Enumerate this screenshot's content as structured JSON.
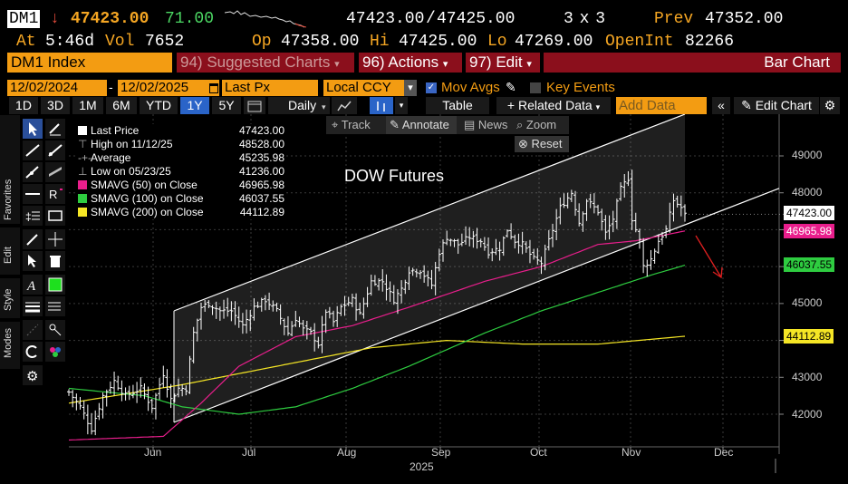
{
  "quote": {
    "ticker": "DM1",
    "change_arrow": "↓",
    "last": "47423.00",
    "change": "71.00",
    "bid": "47423.00",
    "ask": "47425.00",
    "size": "3 x 3",
    "prev_label": "Prev",
    "prev": "47352.00",
    "at_label": "At",
    "time": "5:46d",
    "vol_label": "Vol",
    "vol": "7652",
    "op_label": "Op",
    "op": "47358.00",
    "hi_label": "Hi",
    "hi": "47425.00",
    "lo_label": "Lo",
    "lo": "47269.00",
    "oi_label": "OpenInt",
    "oi": "82266"
  },
  "menu": {
    "security": "DM1 Index",
    "suggested_num": "94)",
    "suggested": "Suggested Charts",
    "actions_num": "96)",
    "actions": "Actions",
    "edit_num": "97)",
    "edit": "Edit",
    "title": "Bar Chart"
  },
  "controls": {
    "start_date": "12/02/2024",
    "end_date": "12/02/2025",
    "field": "Last Px",
    "currency": "Local CCY",
    "mov_avgs": "Mov Avgs",
    "key_events": "Key Events",
    "ranges": [
      "1D",
      "3D",
      "1M",
      "6M",
      "YTD",
      "1Y",
      "5Y"
    ],
    "selected_range": "1Y",
    "period": "Daily",
    "table": "Table",
    "related": "+ Related Data",
    "add_data_placeholder": "Add Data",
    "edit_chart": "Edit Chart"
  },
  "chart_tools": {
    "track": "Track",
    "annotate": "Annotate",
    "news": "News",
    "zoom": "Zoom",
    "reset": "Reset"
  },
  "side_tabs": [
    "Favorites",
    "Edit",
    "Style",
    "Modes"
  ],
  "legend": [
    {
      "label": "Last Price",
      "value": "47423.00",
      "color": "#ffffff"
    },
    {
      "label": "High on 11/12/25",
      "value": "48528.00",
      "color": ""
    },
    {
      "label": "Average",
      "value": "45235.98",
      "color": ""
    },
    {
      "label": "Low on 05/23/25",
      "value": "41236.00",
      "color": ""
    },
    {
      "label": "SMAVG (50)  on Close",
      "value": "46965.98",
      "color": "#e91e8c"
    },
    {
      "label": "SMAVG (100)  on Close",
      "value": "46037.55",
      "color": "#2ecc40"
    },
    {
      "label": "SMAVG (200)  on Close",
      "value": "44112.89",
      "color": "#f5e625"
    }
  ],
  "chart_data": {
    "type": "bar",
    "title": "DOW Futures",
    "x_ticks": [
      "Jun",
      "Jul",
      "Aug",
      "Sep",
      "Oct",
      "Nov",
      "Dec"
    ],
    "x_year": "2025",
    "y_ticks": [
      42000,
      43000,
      44000,
      45000,
      46000,
      47000,
      48000,
      49000
    ],
    "ylim": [
      41300,
      50300
    ],
    "last_tag": "47423.00",
    "sma50_tag": "46965.98",
    "sma100_tag": "46037.55",
    "sma200_tag": "44112.89",
    "colors": {
      "sma50": "#e91e8c",
      "sma100": "#2ecc40",
      "sma200": "#f5e625",
      "last": "#ffffff"
    },
    "price_anchors": [
      [
        0,
        42600
      ],
      [
        3,
        42200
      ],
      [
        6,
        41600
      ],
      [
        9,
        42500
      ],
      [
        12,
        42900
      ],
      [
        15,
        42500
      ],
      [
        19,
        42700
      ],
      [
        22,
        42200
      ],
      [
        25,
        43100
      ],
      [
        27,
        42400
      ],
      [
        29,
        42700
      ],
      [
        31,
        42700
      ],
      [
        33,
        44200
      ],
      [
        35,
        44900
      ],
      [
        37,
        45000
      ],
      [
        40,
        44800
      ],
      [
        43,
        44800
      ],
      [
        46,
        44400
      ],
      [
        49,
        44900
      ],
      [
        52,
        45100
      ],
      [
        55,
        44800
      ],
      [
        58,
        44200
      ],
      [
        60,
        44600
      ],
      [
        62,
        44300
      ],
      [
        64,
        44200
      ],
      [
        66,
        43900
      ],
      [
        68,
        44800
      ],
      [
        70,
        44500
      ],
      [
        72,
        44900
      ],
      [
        75,
        45100
      ],
      [
        77,
        44700
      ],
      [
        80,
        45600
      ],
      [
        83,
        45600
      ],
      [
        86,
        45100
      ],
      [
        88,
        45400
      ],
      [
        90,
        45900
      ],
      [
        93,
        45900
      ],
      [
        96,
        45500
      ],
      [
        98,
        46400
      ],
      [
        100,
        46800
      ],
      [
        103,
        46600
      ],
      [
        106,
        46800
      ],
      [
        109,
        46700
      ],
      [
        111,
        46400
      ],
      [
        114,
        46500
      ],
      [
        116,
        47000
      ],
      [
        118,
        46700
      ],
      [
        120,
        46600
      ],
      [
        123,
        46200
      ],
      [
        125,
        46100
      ],
      [
        127,
        46700
      ],
      [
        130,
        47600
      ],
      [
        133,
        48000
      ],
      [
        135,
        47200
      ],
      [
        137,
        47800
      ],
      [
        140,
        47500
      ],
      [
        142,
        46900
      ],
      [
        144,
        47300
      ],
      [
        146,
        48100
      ],
      [
        148,
        48400
      ],
      [
        149,
        47300
      ],
      [
        151,
        46700
      ],
      [
        152,
        46000
      ],
      [
        154,
        46200
      ],
      [
        156,
        46700
      ],
      [
        158,
        47000
      ],
      [
        160,
        47800
      ],
      [
        162,
        47600
      ],
      [
        163,
        47400
      ]
    ],
    "sma50_anchors": [
      [
        0,
        41300
      ],
      [
        25,
        41400
      ],
      [
        35,
        42300
      ],
      [
        45,
        43300
      ],
      [
        60,
        44100
      ],
      [
        75,
        44400
      ],
      [
        90,
        44900
      ],
      [
        110,
        45600
      ],
      [
        125,
        46000
      ],
      [
        140,
        46600
      ],
      [
        150,
        46700
      ],
      [
        163,
        46966
      ]
    ],
    "sma100_anchors": [
      [
        0,
        42700
      ],
      [
        20,
        42500
      ],
      [
        30,
        42200
      ],
      [
        45,
        42000
      ],
      [
        60,
        42200
      ],
      [
        75,
        42700
      ],
      [
        90,
        43300
      ],
      [
        110,
        44200
      ],
      [
        125,
        44800
      ],
      [
        140,
        45300
      ],
      [
        155,
        45800
      ],
      [
        163,
        46037
      ]
    ],
    "sma200_anchors": [
      [
        0,
        42300
      ],
      [
        30,
        42800
      ],
      [
        60,
        43400
      ],
      [
        80,
        43800
      ],
      [
        100,
        44000
      ],
      [
        120,
        43900
      ],
      [
        140,
        43900
      ],
      [
        163,
        44113
      ]
    ]
  }
}
